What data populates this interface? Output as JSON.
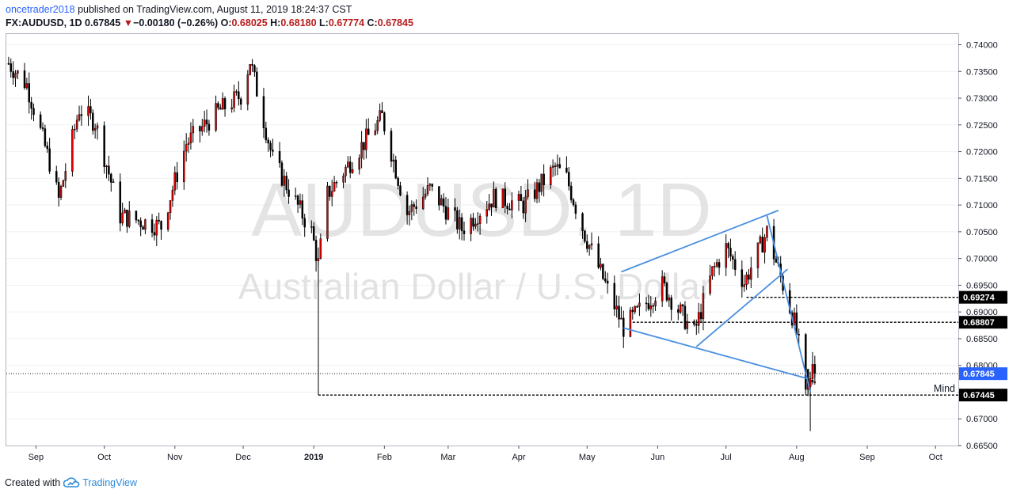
{
  "header": {
    "author": "oncetrader2018",
    "published_text": "published on TradingView.com, August 11, 2019 18:24:37 CST",
    "symbol": "FX:AUDUSD, 1D",
    "last": "0.67845",
    "change": "−0.00180 (−0.26%)",
    "o_label": "O:",
    "o": "0.68025",
    "h_label": "H:",
    "h": "0.68180",
    "l_label": "L:",
    "l": "0.67774",
    "c_label": "C:",
    "c": "0.67845"
  },
  "footer": {
    "created_with": "Created with",
    "brand": "TradingView"
  },
  "watermark": {
    "ticker": "AUDUSD, 1D",
    "name": "Australian Dollar / U.S. Dollar"
  },
  "colors": {
    "up": "#e40000",
    "down": "#000000",
    "trend": "#4a8fe0",
    "price_tag": "#2962ff",
    "grid": "#e0e3eb"
  },
  "chart_data": {
    "type": "candlestick",
    "y_range": [
      0.665,
      0.742
    ],
    "y_ticks": [
      "0.74000",
      "0.73500",
      "0.73000",
      "0.72500",
      "0.72000",
      "0.71500",
      "0.71000",
      "0.70500",
      "0.70000",
      "0.69500",
      "0.69000",
      "0.68500",
      "0.68000",
      "0.67500",
      "0.67000",
      "0.66500"
    ],
    "x_labels": [
      "Sep",
      "Oct",
      "Nov",
      "Dec",
      "2019",
      "Feb",
      "Mar",
      "Apr",
      "May",
      "Jun",
      "Jul",
      "Aug",
      "Sep",
      "Oct"
    ],
    "x_label_dates": [
      "2018-09-01",
      "2018-10-01",
      "2018-11-01",
      "2018-12-01",
      "2019-01-01",
      "2019-02-01",
      "2019-03-01",
      "2019-04-01",
      "2019-05-01",
      "2019-06-01",
      "2019-07-01",
      "2019-08-01",
      "2019-09-01",
      "2019-10-01"
    ],
    "x_range": [
      "2018-08-19",
      "2019-10-11"
    ],
    "anchors": [
      [
        "2018-08-20",
        0.7365
      ],
      [
        "2018-08-28",
        0.7325
      ],
      [
        "2018-09-07",
        0.718
      ],
      [
        "2018-09-11",
        0.711
      ],
      [
        "2018-09-20",
        0.728
      ],
      [
        "2018-09-27",
        0.7255
      ],
      [
        "2018-10-08",
        0.708
      ],
      [
        "2018-10-26",
        0.706
      ],
      [
        "2018-11-06",
        0.7215
      ],
      [
        "2018-11-20",
        0.7275
      ],
      [
        "2018-11-30",
        0.7305
      ],
      [
        "2018-12-04",
        0.737
      ],
      [
        "2018-12-14",
        0.7185
      ],
      [
        "2018-12-31",
        0.705
      ],
      [
        "2019-01-03",
        0.699
      ],
      [
        "2019-01-07",
        0.712
      ],
      [
        "2019-01-31",
        0.7265
      ],
      [
        "2019-02-11",
        0.7085
      ],
      [
        "2019-02-21",
        0.713
      ],
      [
        "2019-03-07",
        0.7055
      ],
      [
        "2019-03-21",
        0.7115
      ],
      [
        "2019-04-03",
        0.71
      ],
      [
        "2019-04-17",
        0.717
      ],
      [
        "2019-04-22",
        0.715
      ],
      [
        "2019-04-30",
        0.7045
      ],
      [
        "2019-05-17",
        0.687
      ],
      [
        "2019-06-03",
        0.695
      ],
      [
        "2019-06-17",
        0.686
      ],
      [
        "2019-06-25",
        0.6975
      ],
      [
        "2019-07-01",
        0.702
      ],
      [
        "2019-07-09",
        0.6955
      ],
      [
        "2019-07-19",
        0.705
      ],
      [
        "2019-07-31",
        0.688
      ],
      [
        "2019-08-06",
        0.6755
      ],
      [
        "2019-08-09",
        0.6785
      ]
    ],
    "candles": [
      [
        "2019-08-05",
        0.6795,
        0.68,
        0.6745,
        0.6755
      ],
      [
        "2019-08-06",
        0.6755,
        0.679,
        0.6745,
        0.6765
      ],
      [
        "2019-08-07",
        0.676,
        0.678,
        0.6677,
        0.6775
      ],
      [
        "2019-08-08",
        0.6775,
        0.6825,
        0.677,
        0.6802
      ],
      [
        "2019-08-09",
        0.6802,
        0.6818,
        0.6777,
        0.6785
      ]
    ],
    "trendlines": [
      [
        [
          "2019-05-16",
          0.6975
        ],
        [
          "2019-07-24",
          0.709
        ]
      ],
      [
        [
          "2019-05-17",
          0.687
        ],
        [
          "2019-08-06",
          0.6775
        ]
      ],
      [
        [
          "2019-06-18",
          0.6835
        ],
        [
          "2019-07-28",
          0.698
        ]
      ],
      [
        [
          "2019-07-19",
          0.708
        ],
        [
          "2019-08-07",
          0.675
        ]
      ]
    ],
    "levels": [
      {
        "label": "0.69274",
        "value": 0.69274,
        "from": "2019-07-10"
      },
      {
        "label": "0.68807",
        "value": 0.68807,
        "from": "2019-05-21"
      },
      {
        "label": "0.67445",
        "value": 0.67445,
        "from": "2019-01-03",
        "note": "Mind"
      }
    ],
    "last_price": {
      "label": "0.67845",
      "value": 0.67845
    },
    "flash_crash_wick": {
      "date": "2019-01-03",
      "high": 0.6995,
      "low": 0.6745
    }
  }
}
